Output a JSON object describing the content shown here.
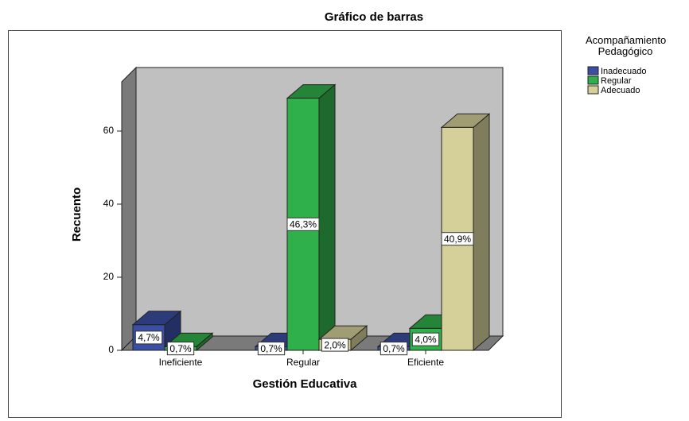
{
  "chart_data": {
    "type": "bar3d",
    "title": "Gráfico de barras",
    "xlabel": "Gestión Educativa",
    "ylabel": "Recuento",
    "legend_title": "Acompañamiento Pedagógico",
    "categories": [
      "Ineficiente",
      "Regular",
      "Eficiente"
    ],
    "series": [
      {
        "name": "Inadecuado",
        "color": "#3a4ea3",
        "values": [
          7,
          1,
          1
        ],
        "value_labels": [
          "4,7%",
          "0,7%",
          "0,7%"
        ]
      },
      {
        "name": "Regular",
        "color": "#30b04a",
        "values": [
          1,
          69,
          6
        ],
        "value_labels": [
          "0,7%",
          "46,3%",
          "4,0%"
        ]
      },
      {
        "name": "Adecuado",
        "color": "#d5d09a",
        "values": [
          null,
          3,
          61
        ],
        "value_labels": [
          null,
          "2,0%",
          "40,9%"
        ]
      }
    ],
    "ylim": [
      0,
      74
    ],
    "yticks": [
      0,
      20,
      40,
      60
    ]
  }
}
